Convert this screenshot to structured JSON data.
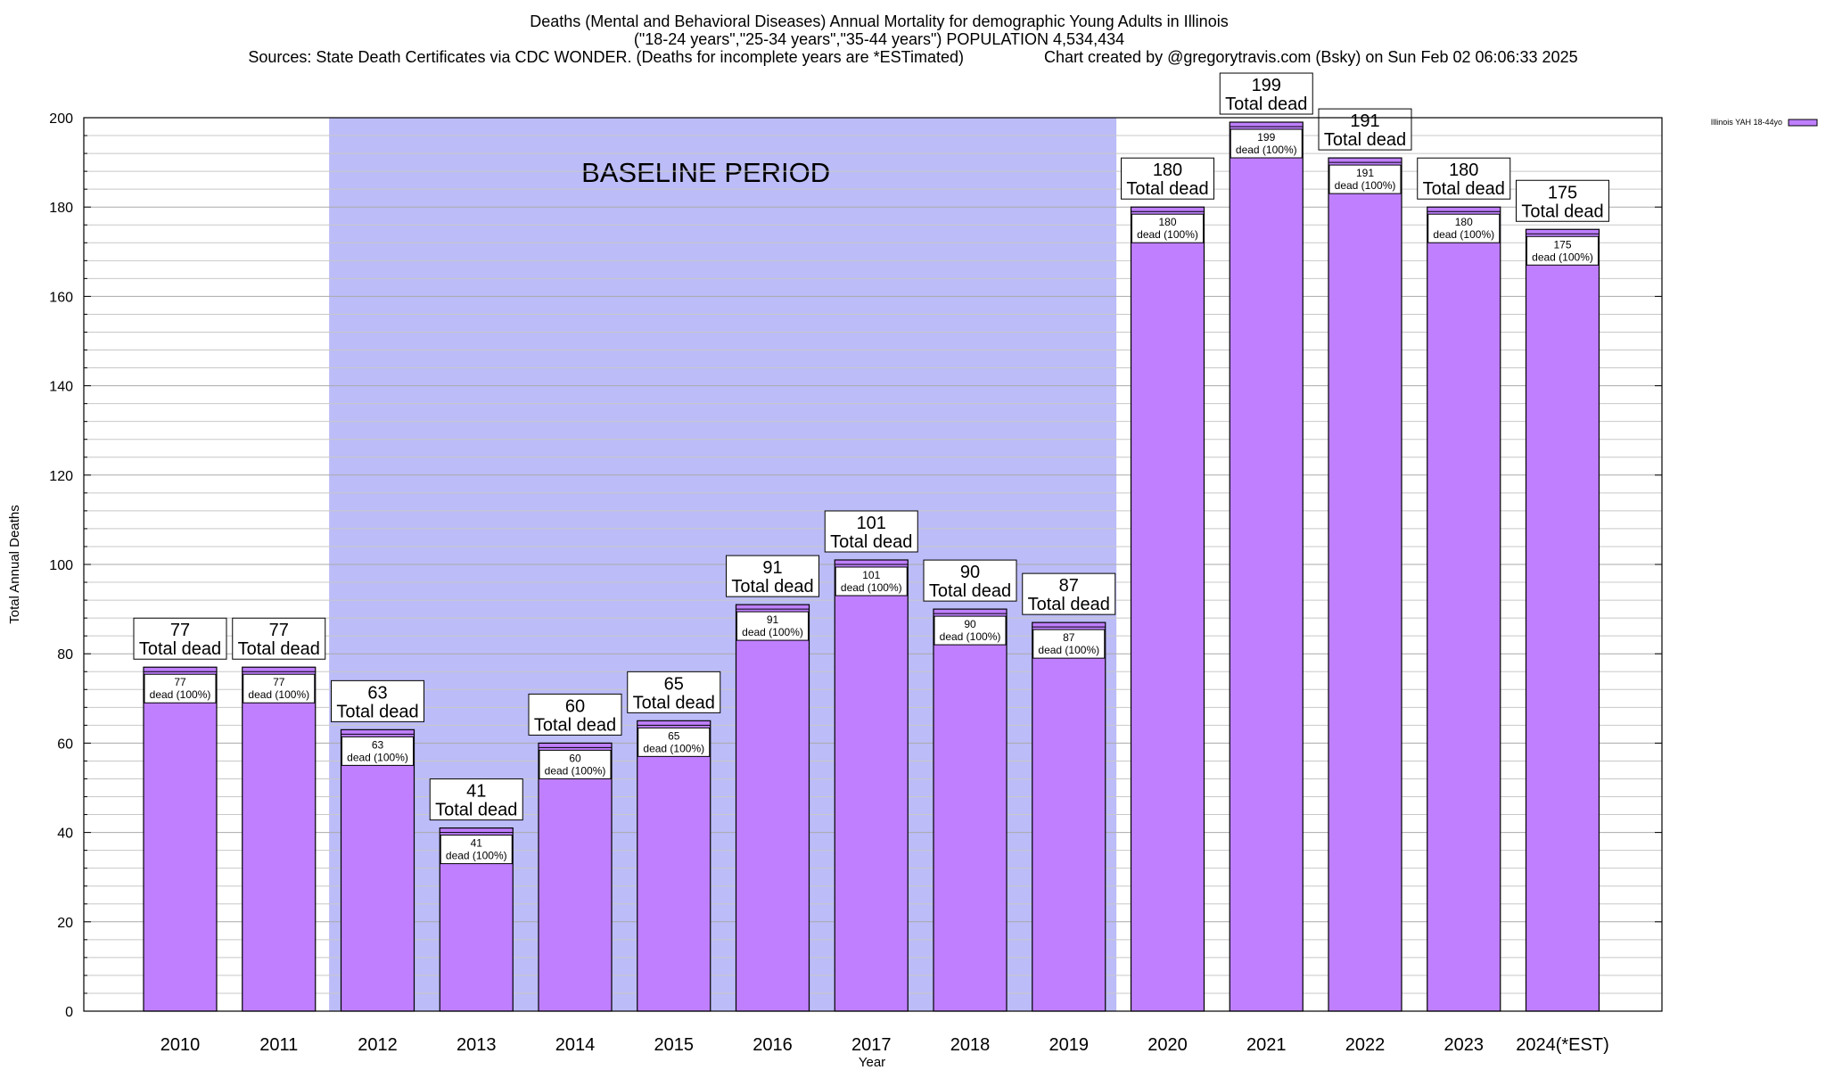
{
  "title": {
    "line1": "Deaths (Mental and Behavioral Diseases) Annual Mortality for demographic Young Adults in Illinois",
    "line2": "(\"18-24 years\",\"25-34 years\",\"35-44 years\") POPULATION 4,534,434",
    "line3": "Sources: State Death Certificates via CDC WONDER. (Deaths for incomplete years are *ESTimated)                  Chart created by @gregorytravis.com (Bsky) on Sun Feb 02 06:06:33 2025"
  },
  "colors": {
    "bar_fill": "#bf7fff",
    "bar_top": "#bf7fff",
    "baseline_band": "#bcbcf8",
    "grid": "#c8c8c8",
    "axis": "#000000"
  },
  "chart_data": {
    "type": "bar",
    "categories": [
      "2010",
      "2011",
      "2012",
      "2013",
      "2014",
      "2015",
      "2016",
      "2017",
      "2018",
      "2019",
      "2020",
      "2021",
      "2022",
      "2023",
      "2024(*EST)"
    ],
    "series": [
      {
        "name": "Illinois YAH 18-44yo",
        "values": [
          77,
          77,
          63,
          41,
          60,
          65,
          91,
          101,
          90,
          87,
          180,
          199,
          191,
          180,
          175
        ]
      }
    ],
    "total_label": "Total dead",
    "inner_label_suffix": "dead (100%)",
    "ylabel": "Total Annual Deaths",
    "xlabel": "Year",
    "ylim": [
      0,
      200
    ],
    "yticks": [
      0,
      20,
      40,
      60,
      80,
      100,
      120,
      140,
      160,
      180,
      200
    ],
    "baseline_band": {
      "label": "BASELINE PERIOD",
      "from": "2012",
      "to": "2019"
    },
    "grid": true,
    "legend_position": "top-right"
  }
}
